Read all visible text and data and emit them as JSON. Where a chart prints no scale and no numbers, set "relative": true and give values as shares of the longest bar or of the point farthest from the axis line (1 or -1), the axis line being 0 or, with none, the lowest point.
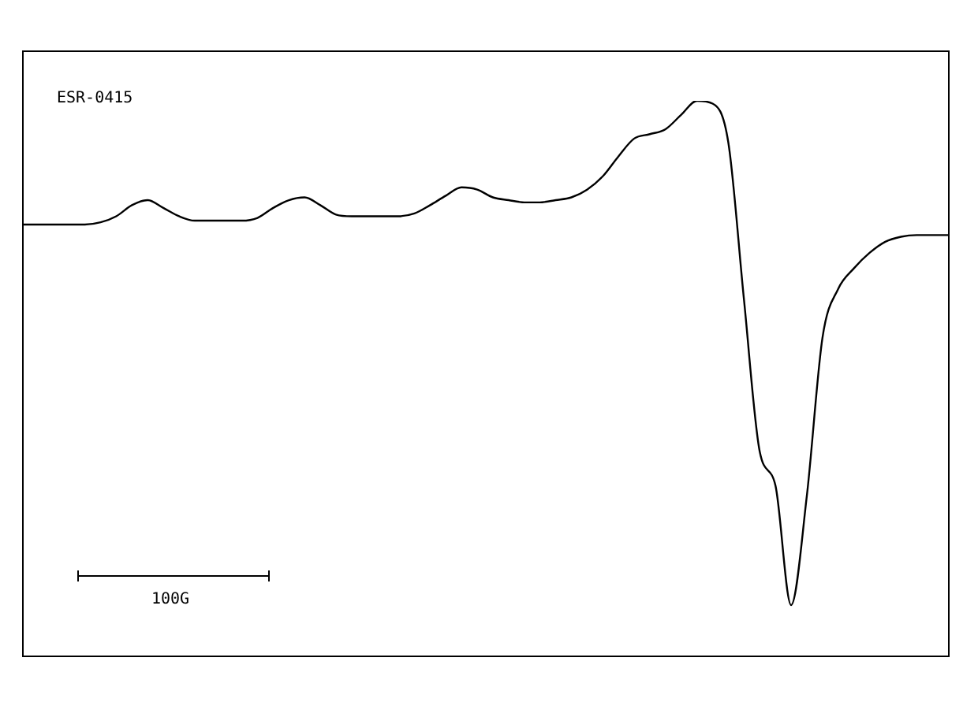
{
  "chart_data": {
    "type": "line",
    "relative": true,
    "categories": [
      null,
      null,
      null,
      null,
      null,
      null,
      null,
      null,
      null,
      null,
      null,
      null,
      null,
      null,
      null,
      null,
      null,
      null,
      null,
      null,
      null,
      null,
      null,
      null,
      null,
      null,
      null,
      null,
      null,
      null,
      null,
      null,
      null,
      null,
      null,
      null,
      null,
      null,
      null,
      null,
      null,
      null,
      null,
      null,
      null,
      null,
      null,
      null,
      null,
      null,
      null,
      null,
      null,
      null,
      null,
      null,
      null,
      null,
      null,
      null
    ],
    "series": [
      {
        "color": "#000000",
        "values": [
          0.777,
          0.777,
          0.777,
          0.777,
          0.777,
          0.781,
          0.792,
          0.812,
          0.821,
          0.807,
          0.792,
          0.784,
          0.784,
          0.784,
          0.784,
          0.789,
          0.807,
          0.821,
          0.826,
          0.812,
          0.795,
          0.792,
          0.792,
          0.792,
          0.792,
          0.797,
          0.812,
          0.829,
          0.844,
          0.84,
          0.826,
          0.821,
          0.817,
          0.817,
          0.821,
          0.826,
          0.84,
          0.864,
          0.9,
          0.932,
          0.94,
          0.949,
          0.975,
          1,
          0.995,
          0.925,
          0.641,
          0.368,
          0.307,
          0.091,
          0.287,
          0.573,
          0.661,
          0.698,
          0.726,
          0.746,
          0.755,
          0.758,
          0.758,
          0.758
        ]
      }
    ],
    "annotations": [
      "ESR-0415",
      "100G"
    ]
  }
}
